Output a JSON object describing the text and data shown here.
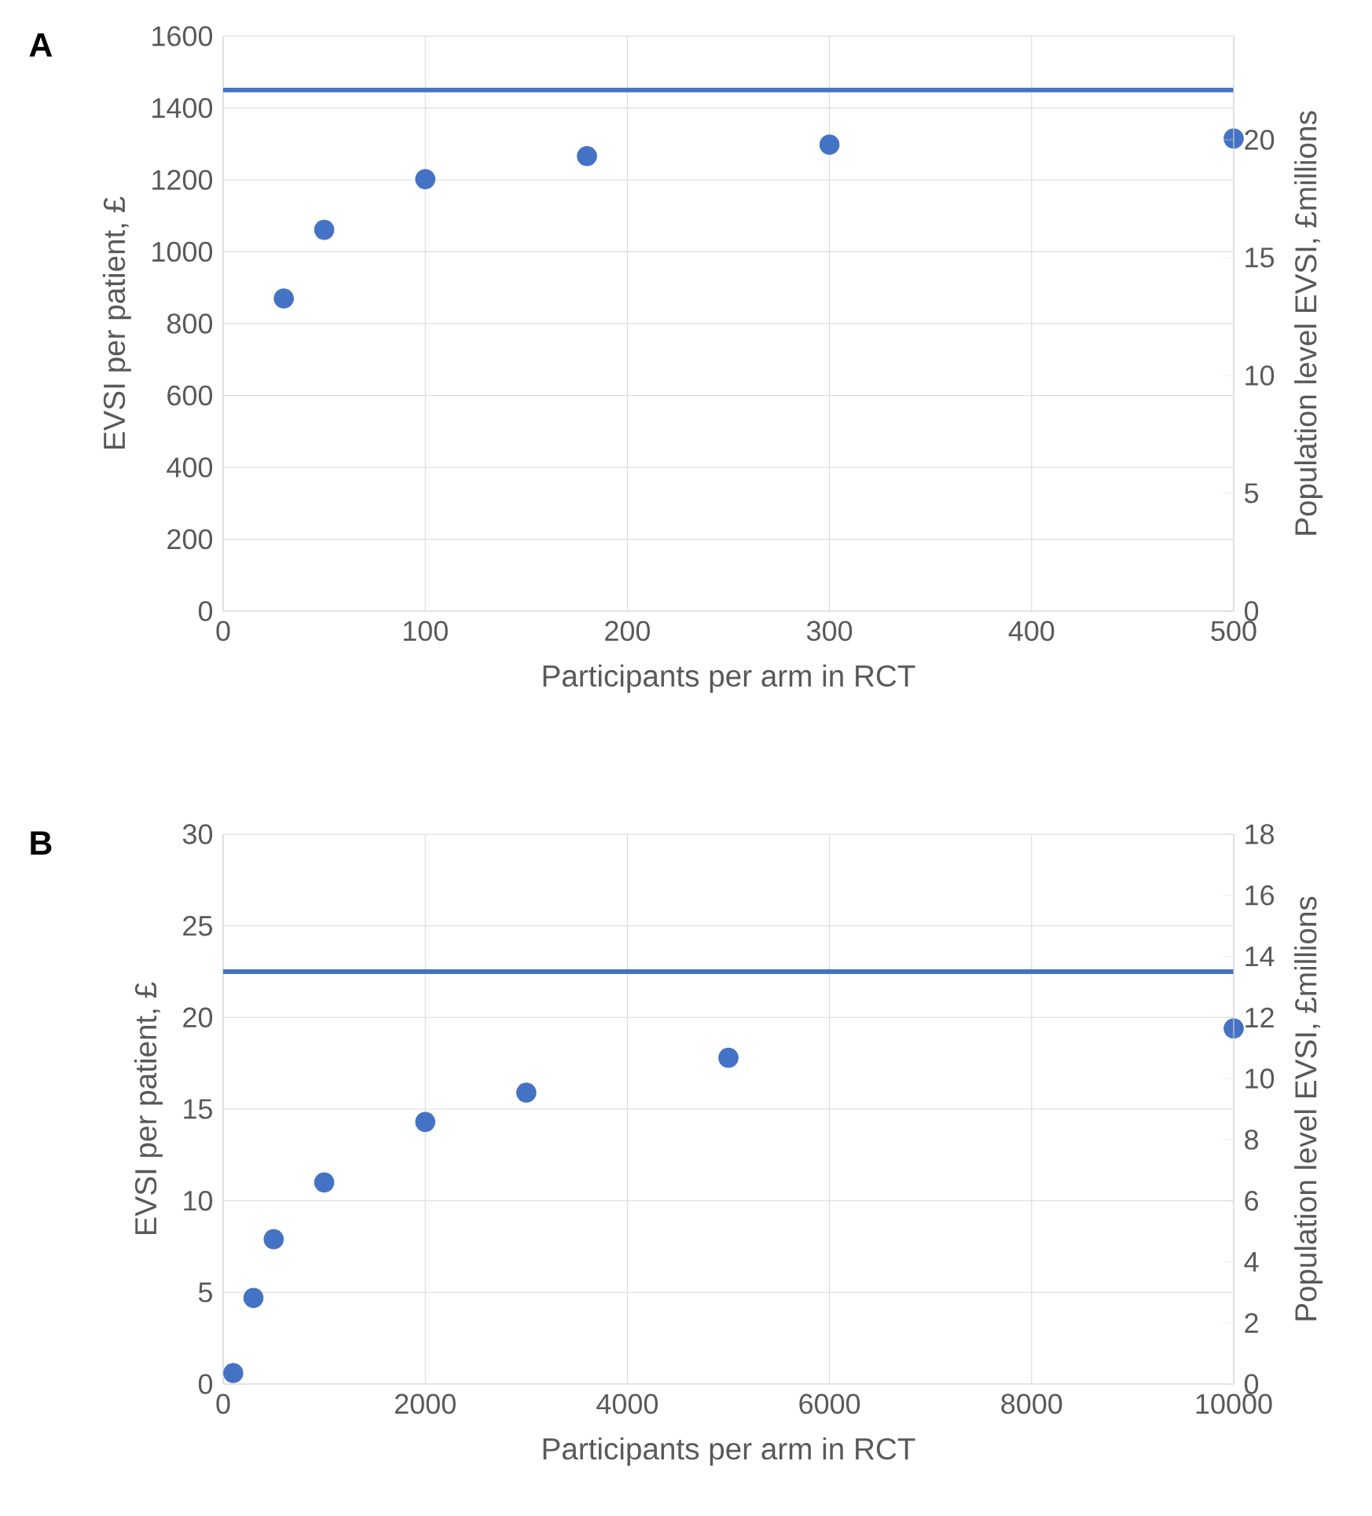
{
  "chart_data": [
    {
      "type": "scatter",
      "title": "A",
      "xlabel": "Participants per arm in RCT",
      "ylabel": "EVSI per patient, £",
      "y2label": "Population level EVSI, £millions",
      "x": [
        30,
        50,
        100,
        180,
        300,
        500
      ],
      "series": [
        {
          "color": "#4472c4",
          "values": [
            870,
            1061,
            1202,
            1266,
            1298,
            1315
          ]
        }
      ],
      "xlim": [
        0,
        500
      ],
      "xticks": [
        0,
        100,
        200,
        300,
        400,
        500
      ],
      "ylim": [
        0,
        1600
      ],
      "yticks": [
        0,
        200,
        400,
        600,
        800,
        1000,
        1200,
        1400,
        1600
      ],
      "y2lim": [
        0,
        24.4
      ],
      "y2ticks": [
        0,
        5,
        10,
        15,
        20
      ],
      "ref_lines": [
        {
          "axis": "y",
          "value": 1450,
          "color": "#4472c4"
        }
      ],
      "grid": true,
      "marker": "circle"
    },
    {
      "type": "scatter",
      "title": "B",
      "xlabel": "Participants per arm in RCT",
      "ylabel": "EVSI per patient, £",
      "y2label": "Population level EVSI, £millions",
      "x": [
        100,
        300,
        500,
        1000,
        2000,
        3000,
        5000,
        10000
      ],
      "series": [
        {
          "color": "#4472c4",
          "values": [
            0.6,
            4.7,
            7.9,
            11,
            14.3,
            15.9,
            17.8,
            19.4
          ]
        }
      ],
      "xlim": [
        0,
        10000
      ],
      "xticks": [
        0,
        2000,
        4000,
        6000,
        8000,
        10000
      ],
      "ylim": [
        0,
        30
      ],
      "yticks": [
        0,
        5,
        10,
        15,
        20,
        25,
        30
      ],
      "y2lim": [
        0,
        18
      ],
      "y2ticks": [
        0,
        2,
        4,
        6,
        8,
        10,
        12,
        14,
        16,
        18
      ],
      "ref_lines": [
        {
          "axis": "y",
          "value": 22.5,
          "color": "#4472c4"
        }
      ],
      "grid": true,
      "marker": "circle"
    }
  ]
}
